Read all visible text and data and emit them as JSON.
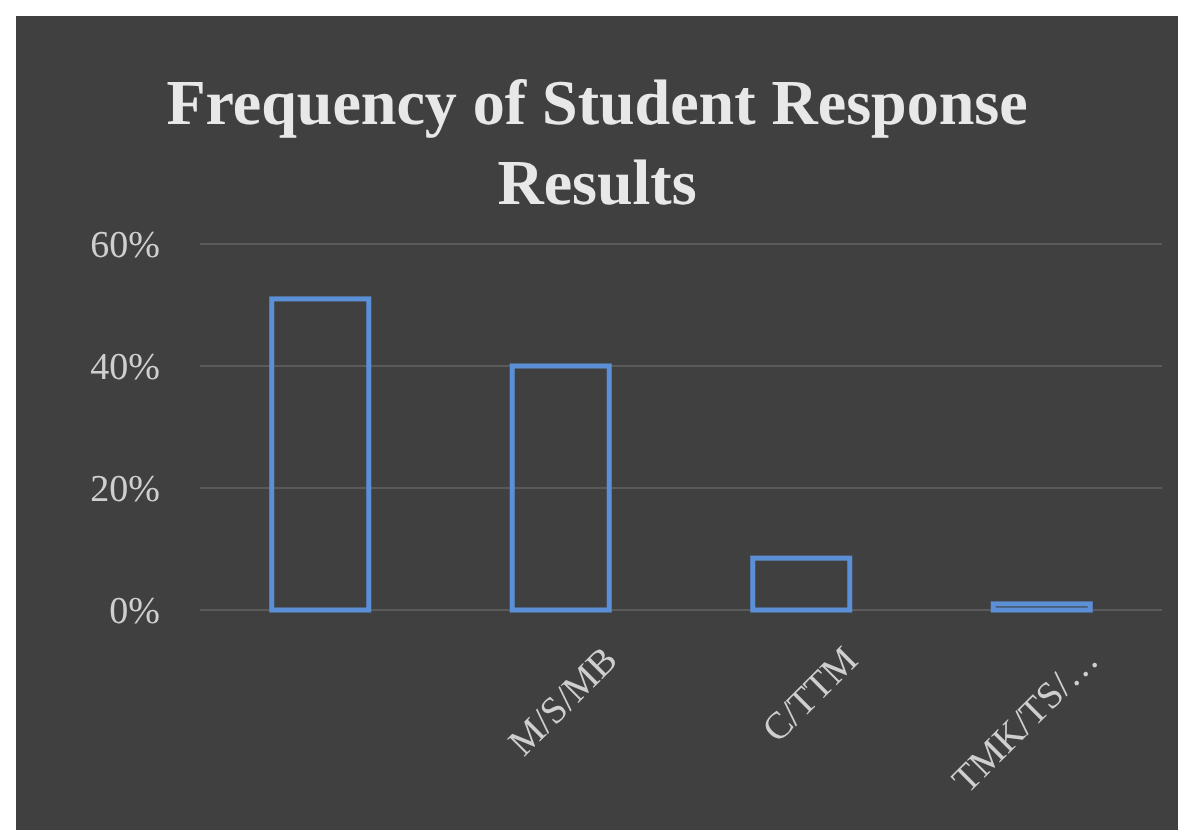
{
  "chart_data": {
    "type": "bar",
    "title": "Frequency of Student Response Results",
    "categories": [
      null,
      "M/S/MB",
      "C/TTM",
      "TMK/TS/…"
    ],
    "values": [
      51,
      40,
      8.5,
      1
    ],
    "color": "#5b8fd6",
    "ylim": [
      0,
      60
    ],
    "yticks": [
      {
        "value": 0,
        "label": "0%"
      },
      {
        "value": 20,
        "label": "20%"
      },
      {
        "value": 40,
        "label": "40%"
      },
      {
        "value": 60,
        "label": "60%"
      }
    ],
    "grid": "y"
  }
}
